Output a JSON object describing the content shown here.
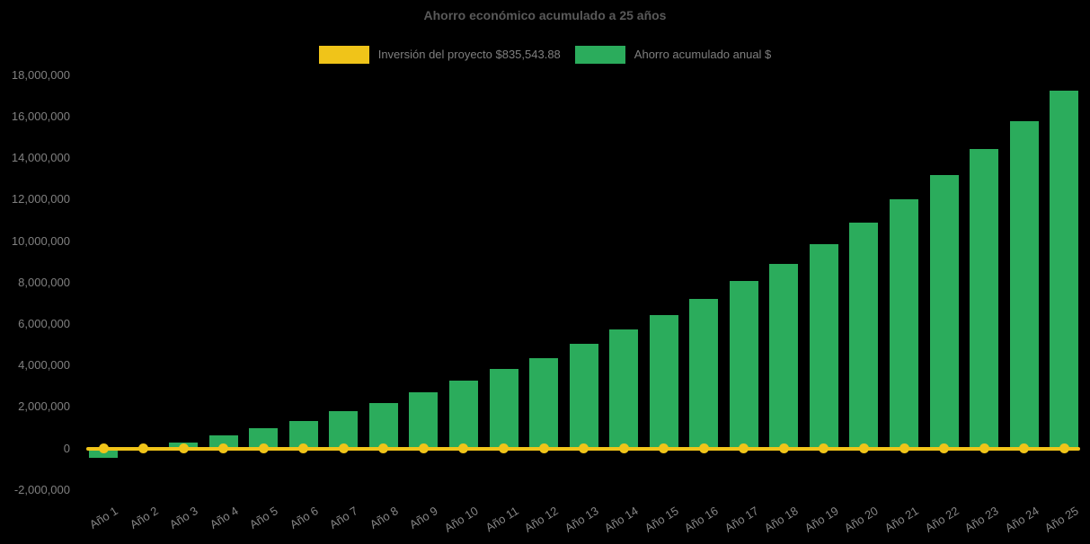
{
  "chart_data": {
    "type": "bar",
    "title": "Ahorro económico acumulado a 25 años",
    "legend_position": "top",
    "grid": false,
    "background_color": "#000000",
    "title_color": "#595959",
    "axis_label_color": "#808080",
    "categories": [
      "Año 1",
      "Año 2",
      "Año 3",
      "Año 4",
      "Año 5",
      "Año 6",
      "Año 7",
      "Año 8",
      "Año 9",
      "Año 10",
      "Año 11",
      "Año 12",
      "Año 13",
      "Año 14",
      "Año 15",
      "Año 16",
      "Año 17",
      "Año 18",
      "Año 19",
      "Año 20",
      "Año 21",
      "Año 22",
      "Año 23",
      "Año 24",
      "Año 25"
    ],
    "series": [
      {
        "name": "Inversión del proyecto $835,543.88",
        "type": "line",
        "color": "#F0C419",
        "marker": "circle",
        "investment_value": 835543.88,
        "plotted_at": 0
      },
      {
        "name": "Ahorro acumulado anual $",
        "type": "bar",
        "color": "#2BAC5C",
        "values": [
          -450000,
          0,
          260000,
          640000,
          970000,
          1340000,
          1780000,
          2200000,
          2700000,
          3280000,
          3850000,
          4360000,
          5040000,
          5730000,
          6410000,
          7200000,
          8070000,
          8900000,
          9870000,
          10870000,
          12000000,
          13170000,
          14420000,
          15760000,
          17230000
        ]
      }
    ],
    "y_axis": {
      "min": -2000000,
      "max": 18000000,
      "tick_step": 2000000,
      "tick_values": [
        18000000,
        16000000,
        14000000,
        12000000,
        10000000,
        8000000,
        6000000,
        4000000,
        2000000,
        0,
        -2000000
      ],
      "tick_labels": [
        "18,000,000",
        "16,000,000",
        "14,000,000",
        "12,000,000",
        "10,000,000",
        "8,000,000",
        "6,000,000",
        "4,000,000",
        "2,000,000",
        "0",
        "-2,000,000"
      ]
    }
  }
}
